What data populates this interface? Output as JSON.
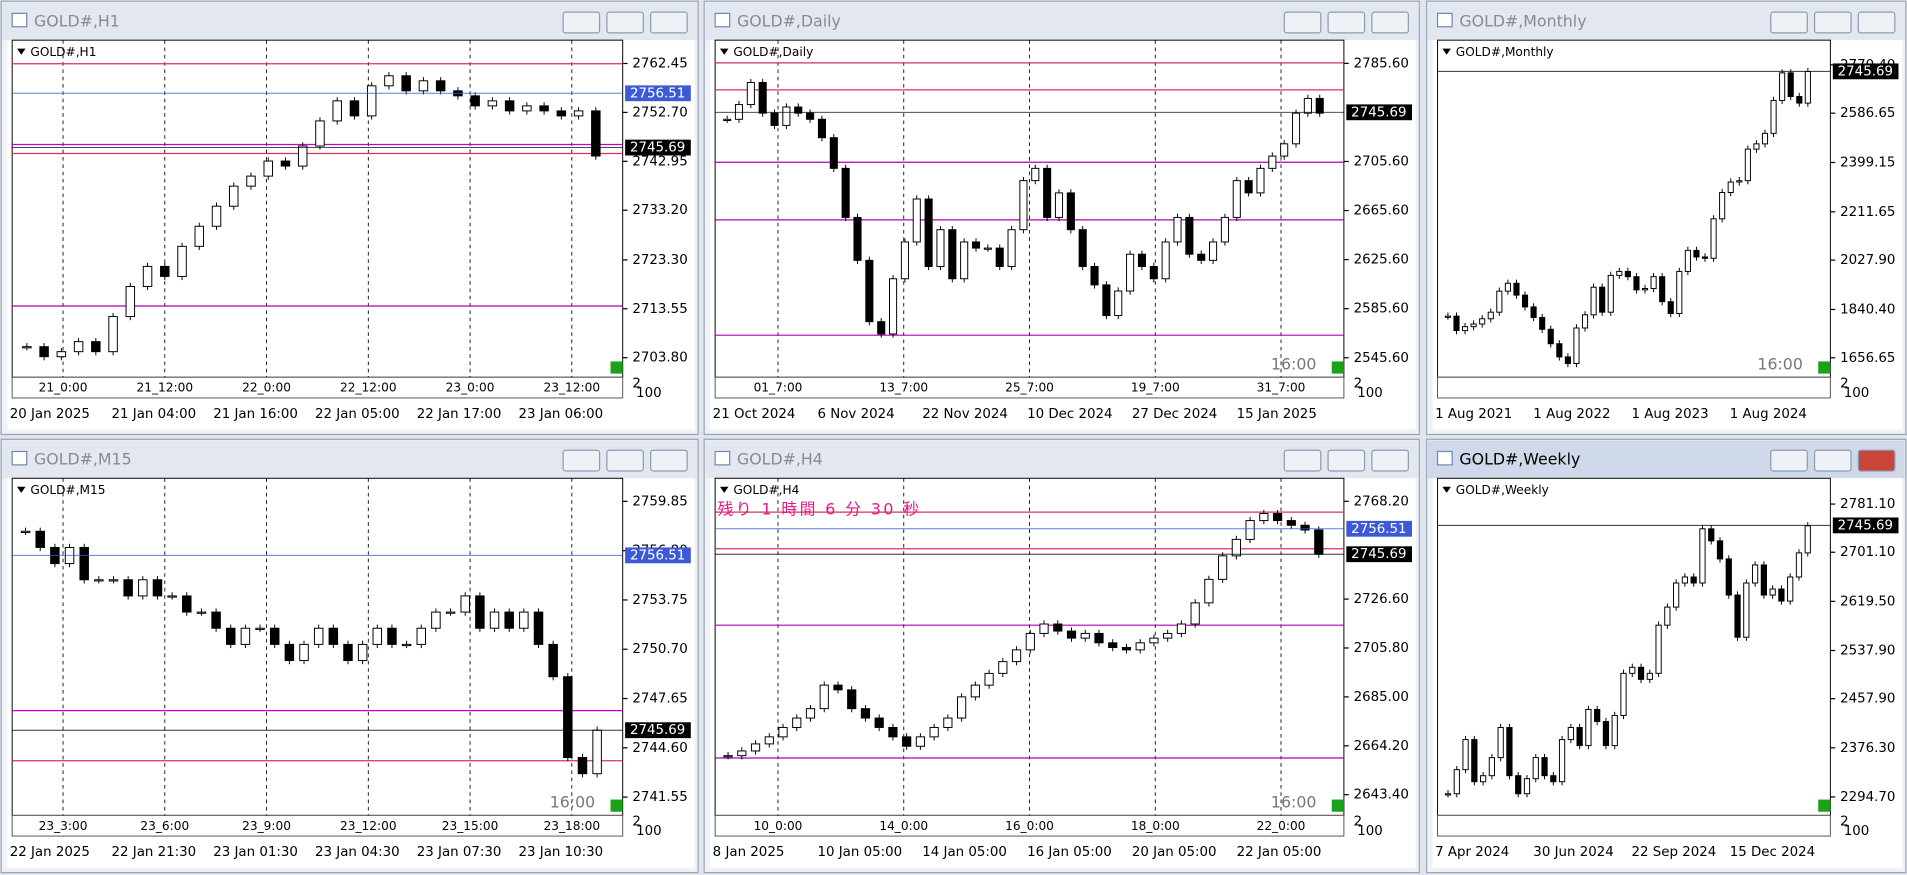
{
  "windows": [
    {
      "title": "GOLD#,H1",
      "symbol_label": "GOLD#,H1",
      "ylim": [
        2699.9,
        2767.1
      ],
      "price_ticks": [
        2762.45,
        {
          "value": 2752.7,
          "label": "2752.70"
        },
        2742.95,
        {
          "value": 2733.2,
          "label": "2733.20"
        },
        {
          "value": 2723.3,
          "label": "2723.30"
        },
        2713.55,
        {
          "value": 2703.8,
          "label": "2703.80"
        }
      ],
      "price_markers": [
        {
          "value": 2756.51,
          "color": "#3c5ad6"
        },
        {
          "value": 2745.69,
          "color": "#000000"
        }
      ],
      "levels": [
        {
          "value": 2762.4,
          "color": "#d6335a"
        },
        {
          "value": 2746.3,
          "color": "#c800c8"
        },
        {
          "value": 2744.5,
          "color": "#d6335a"
        },
        {
          "value": 2714.1,
          "color": "#b000b0"
        }
      ],
      "session_labels": [
        "21_0:00",
        "21_12:00",
        "22_0:00",
        "22_12:00",
        "23_0:00",
        "23_12:00"
      ],
      "time_labels": [
        "20 Jan 2025",
        "21 Jan 04:00",
        "21 Jan 16:00",
        "22 Jan 05:00",
        "22 Jan 17:00",
        "23 Jan 06:00"
      ],
      "scale_labels": [
        "2",
        "100"
      ],
      "closes": [
        2706,
        2704,
        2705,
        2707,
        2705,
        2712,
        2718,
        2722,
        2720,
        2726,
        2730,
        2734,
        2738,
        2740,
        2743,
        2742,
        2746,
        2751,
        2755,
        2752,
        2758,
        2760,
        2757,
        2759,
        2757,
        2756,
        2754,
        2755,
        2753,
        2754,
        2753,
        2752,
        2753,
        2744
      ]
    },
    {
      "title": "GOLD#,Daily",
      "symbol_label": "GOLD#,Daily",
      "ylim": [
        2529.7,
        2804.5
      ],
      "price_ticks": [
        {
          "value": 2785.6,
          "label": "2785.60"
        },
        {
          "value": 2705.6,
          "label": "2705.60"
        },
        {
          "value": 2665.6,
          "label": "2665.60"
        },
        {
          "value": 2625.6,
          "label": "2625.60"
        },
        {
          "value": 2585.6,
          "label": "2585.60"
        },
        {
          "value": 2545.6,
          "label": "2545.60"
        }
      ],
      "price_markers": [
        {
          "value": 2745.69,
          "color": "#000000"
        }
      ],
      "levels": [
        {
          "value": 2786,
          "color": "#d6335a"
        },
        {
          "value": 2764,
          "color": "#d6335a"
        },
        {
          "value": 2705,
          "color": "#b000b0"
        },
        {
          "value": 2658,
          "color": "#b000b0"
        },
        {
          "value": 2564,
          "color": "#b000b0"
        }
      ],
      "session_labels": [
        "01_7:00",
        "13_7:00",
        "25_7:00",
        "19_7:00",
        "31_7:00"
      ],
      "time_labels": [
        "21 Oct 2024",
        "6 Nov 2024",
        "22 Nov 2024",
        "10 Dec 2024",
        "27 Dec 2024",
        "15 Jan 2025"
      ],
      "timer": "16:00",
      "scale_labels": [
        "2",
        "100"
      ],
      "closes": [
        2740,
        2752,
        2770,
        2745,
        2735,
        2750,
        2745,
        2740,
        2725,
        2700,
        2660,
        2625,
        2575,
        2565,
        2610,
        2640,
        2675,
        2620,
        2650,
        2610,
        2640,
        2635,
        2635,
        2620,
        2650,
        2690,
        2700,
        2660,
        2680,
        2650,
        2620,
        2605,
        2580,
        2600,
        2630,
        2620,
        2610,
        2640,
        2660,
        2630,
        2625,
        2640,
        2660,
        2690,
        2680,
        2700,
        2710,
        2720,
        2745,
        2757,
        2745
      ]
    },
    {
      "title": "GOLD#,Monthly",
      "symbol_label": "GOLD#,Monthly",
      "ylim": [
        1582.6,
        2864.3
      ],
      "price_ticks": [
        {
          "value": 2770.4,
          "label": "2770.40"
        },
        2586.65,
        2399.15,
        2211.65,
        {
          "value": 2027.9,
          "label": "2027.90"
        },
        {
          "value": 1840.4,
          "label": "1840.40"
        },
        1656.65
      ],
      "price_markers": [
        {
          "value": 2745.69,
          "color": "#000000"
        }
      ],
      "levels": [],
      "session_labels": [],
      "time_labels": [
        "1 Aug 2021",
        "1 Aug 2022",
        "1 Aug 2023",
        "1 Aug 2024"
      ],
      "timer": "16:00",
      "scale_labels": [
        "2",
        "100"
      ],
      "closes": [
        1815,
        1760,
        1775,
        1785,
        1805,
        1830,
        1910,
        1940,
        1895,
        1850,
        1810,
        1765,
        1710,
        1660,
        1635,
        1770,
        1820,
        1925,
        1830,
        1970,
        1985,
        1965,
        1915,
        1920,
        1965,
        1870,
        1825,
        1985,
        2065,
        2040,
        2035,
        2185,
        2285,
        2325,
        2330,
        2450,
        2470,
        2510,
        2635,
        2740,
        2650,
        2625,
        2745
      ]
    },
    {
      "title": "GOLD#,M15",
      "symbol_label": "GOLD#,M15",
      "ylim": [
        2740.42,
        2761.28
      ],
      "price_ticks": [
        2759.85,
        {
          "value": 2756.8,
          "label": "2756.80"
        },
        2753.75,
        {
          "value": 2750.7,
          "label": "2750.70"
        },
        2747.65,
        {
          "value": 2744.6,
          "label": "2744.60"
        },
        2741.55
      ],
      "price_markers": [
        {
          "value": 2756.51,
          "color": "#3c5ad6"
        },
        {
          "value": 2745.69,
          "color": "#000000"
        }
      ],
      "levels": [
        {
          "value": 2746.9,
          "color": "#c800c8"
        },
        {
          "value": 2743.8,
          "color": "#d6335a"
        }
      ],
      "session_labels": [
        "23_3:00",
        "23_6:00",
        "23_9:00",
        "23_12:00",
        "23_15:00",
        "23_18:00"
      ],
      "time_labels": [
        "22 Jan 2025",
        "22 Jan 21:30",
        "23 Jan 01:30",
        "23 Jan 04:30",
        "23 Jan 07:30",
        "23 Jan 10:30"
      ],
      "timer": "16:00",
      "scale_labels": [
        "2",
        "100"
      ],
      "closes": [
        2758,
        2757,
        2756,
        2757,
        2755,
        2755,
        2755,
        2754,
        2755,
        2754,
        2754,
        2753,
        2753,
        2752,
        2751,
        2752,
        2752,
        2751,
        2750,
        2751,
        2752,
        2751,
        2750,
        2751,
        2752,
        2751,
        2751,
        2752,
        2753,
        2753,
        2754,
        2752,
        2753,
        2752,
        2753,
        2751,
        2749,
        2744,
        2743,
        2745.69
      ]
    },
    {
      "title": "GOLD#,H4",
      "symbol_label": "GOLD#,H4",
      "ylim": [
        2634.6,
        2778.0
      ],
      "price_ticks": [
        {
          "value": 2768.2,
          "label": "2768.20"
        },
        {
          "value": 2726.6,
          "label": "2726.60"
        },
        {
          "value": 2705.8,
          "label": "2705.80"
        },
        {
          "value": 2685,
          "label": "2685.00"
        },
        {
          "value": 2664.2,
          "label": "2664.20"
        },
        {
          "value": 2643.4,
          "label": "2643.40"
        }
      ],
      "price_markers": [
        {
          "value": 2756.51,
          "color": "#3c5ad6"
        },
        {
          "value": 2745.69,
          "color": "#000000"
        }
      ],
      "levels": [
        {
          "value": 2763.6,
          "color": "#d6335a"
        },
        {
          "value": 2748,
          "color": "#d6335a"
        },
        {
          "value": 2715.5,
          "color": "#b000b0"
        },
        {
          "value": 2659,
          "color": "#b000b0"
        }
      ],
      "session_labels": [
        "10_0:00",
        "14_0:00",
        "16_0:00",
        "18_0:00",
        "22_0:00"
      ],
      "time_labels": [
        "8 Jan 2025",
        "10 Jan 05:00",
        "14 Jan 05:00",
        "16 Jan 05:00",
        "20 Jan 05:00",
        "22 Jan 05:00"
      ],
      "countdown": "残り 1 時間 6 分 30 秒",
      "timer": "16:00",
      "scale_labels": [
        "2",
        "100"
      ],
      "closes": [
        2660,
        2662,
        2665,
        2668,
        2672,
        2676,
        2680,
        2690,
        2688,
        2680,
        2676,
        2672,
        2668,
        2664,
        2668,
        2672,
        2676,
        2685,
        2690,
        2695,
        2700,
        2705,
        2712,
        2716,
        2713,
        2710,
        2712,
        2708,
        2706,
        2705,
        2708,
        2710,
        2712,
        2716,
        2725,
        2735,
        2745,
        2752,
        2760,
        2763,
        2760,
        2758,
        2756,
        2745.69
      ]
    },
    {
      "title": "GOLD#,Weekly",
      "symbol_label": "GOLD#,Weekly",
      "active": true,
      "ylim": [
        2264.1,
        2823.96
      ],
      "price_ticks": [
        {
          "value": 2781.1,
          "label": "2781.10"
        },
        {
          "value": 2701.1,
          "label": "2701.10"
        },
        {
          "value": 2619.5,
          "label": "2619.50"
        },
        {
          "value": 2537.9,
          "label": "2537.90"
        },
        {
          "value": 2457.9,
          "label": "2457.90"
        },
        {
          "value": 2376.3,
          "label": "2376.30"
        },
        {
          "value": 2294.7,
          "label": "2294.70"
        }
      ],
      "price_markers": [
        {
          "value": 2745.69,
          "color": "#000000"
        }
      ],
      "levels": [],
      "session_labels": [],
      "time_labels": [
        "7 Apr 2024",
        "30 Jun 2024",
        "22 Sep 2024",
        "15 Dec 2024"
      ],
      "scale_labels": [
        "2",
        "100"
      ],
      "closes": [
        2300,
        2340,
        2390,
        2320,
        2330,
        2360,
        2410,
        2330,
        2300,
        2325,
        2360,
        2330,
        2320,
        2390,
        2410,
        2380,
        2440,
        2420,
        2380,
        2430,
        2500,
        2510,
        2490,
        2500,
        2580,
        2610,
        2650,
        2660,
        2650,
        2740,
        2720,
        2690,
        2630,
        2560,
        2650,
        2680,
        2630,
        2640,
        2620,
        2660,
        2700,
        2745
      ]
    }
  ]
}
